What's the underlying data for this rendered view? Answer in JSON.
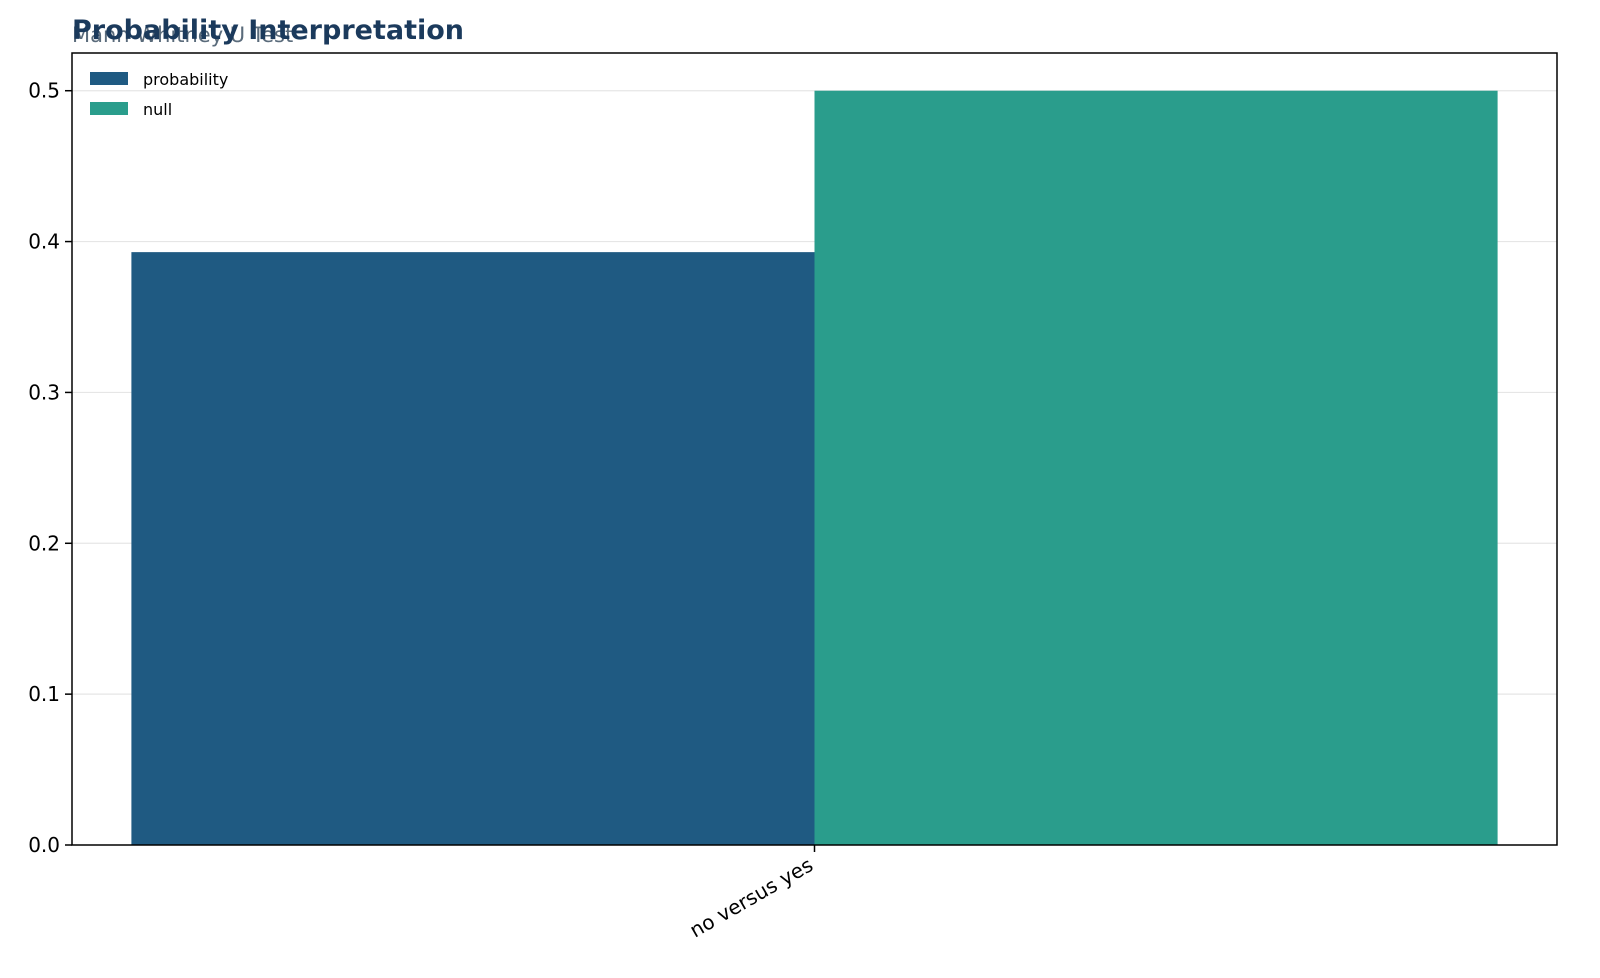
{
  "chart_data": {
    "type": "bar",
    "title": "Probability Interpretation",
    "subtitle": "Mann-Whitney U Test",
    "xlabel": "",
    "ylabel": "",
    "categories": [
      "no versus yes"
    ],
    "series": [
      {
        "name": "probability",
        "values": [
          0.393
        ],
        "color": "#1f5a82"
      },
      {
        "name": "null",
        "values": [
          0.5
        ],
        "color": "#2a9d8c"
      }
    ],
    "ylim": [
      0,
      0.525
    ],
    "yticks": [
      0.0,
      0.1,
      0.2,
      0.3,
      0.4,
      0.5
    ],
    "ytick_labels": [
      "0.0",
      "0.1",
      "0.2",
      "0.3",
      "0.4",
      "0.5"
    ],
    "grid": "y",
    "legend_position": "top-left",
    "title_color": "#1b3a5c",
    "subtitle_color": "#5a6b7b"
  }
}
